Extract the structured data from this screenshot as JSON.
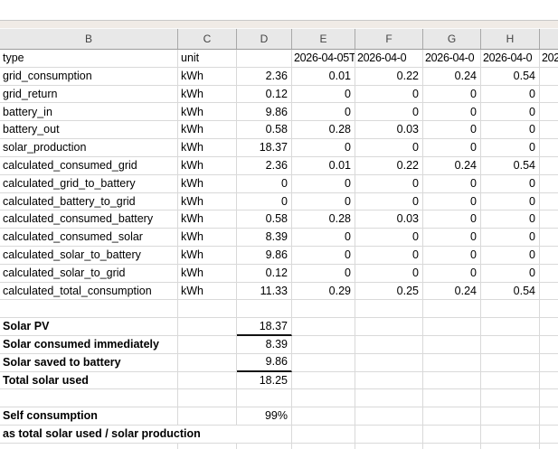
{
  "colors": {
    "header_bg": "#e8e8e8",
    "header_border": "#9c9c9c",
    "gridline": "#d9d9d9",
    "ribbon_strip": "#f0ebe6",
    "sum_border": "#111111"
  },
  "sheet": {
    "column_letters": [
      "B",
      "C",
      "D",
      "E",
      "F",
      "G",
      "H",
      ""
    ],
    "header_row": {
      "type_label": "type",
      "unit_label": "unit",
      "date_headers": [
        "2026-04-05T",
        "2026-04-0",
        "2026-04-0",
        "2026-04-0",
        "202"
      ]
    },
    "rows": [
      {
        "type": "grid_consumption",
        "unit": "kWh",
        "values": [
          "2.36",
          "0.01",
          "0.22",
          "0.24",
          "0.54"
        ]
      },
      {
        "type": "grid_return",
        "unit": "kWh",
        "values": [
          "0.12",
          "0",
          "0",
          "0",
          "0"
        ]
      },
      {
        "type": "battery_in",
        "unit": "kWh",
        "values": [
          "9.86",
          "0",
          "0",
          "0",
          "0"
        ]
      },
      {
        "type": "battery_out",
        "unit": "kWh",
        "values": [
          "0.58",
          "0.28",
          "0.03",
          "0",
          "0"
        ]
      },
      {
        "type": "solar_production",
        "unit": "kWh",
        "values": [
          "18.37",
          "0",
          "0",
          "0",
          "0"
        ]
      },
      {
        "type": "calculated_consumed_grid",
        "unit": "kWh",
        "values": [
          "2.36",
          "0.01",
          "0.22",
          "0.24",
          "0.54"
        ]
      },
      {
        "type": "calculated_grid_to_battery",
        "unit": "kWh",
        "values": [
          "0",
          "0",
          "0",
          "0",
          "0"
        ]
      },
      {
        "type": "calculated_battery_to_grid",
        "unit": "kWh",
        "values": [
          "0",
          "0",
          "0",
          "0",
          "0"
        ]
      },
      {
        "type": "calculated_consumed_battery",
        "unit": "kWh",
        "values": [
          "0.58",
          "0.28",
          "0.03",
          "0",
          "0"
        ]
      },
      {
        "type": "calculated_consumed_solar",
        "unit": "kWh",
        "values": [
          "8.39",
          "0",
          "0",
          "0",
          "0"
        ]
      },
      {
        "type": "calculated_solar_to_battery",
        "unit": "kWh",
        "values": [
          "9.86",
          "0",
          "0",
          "0",
          "0"
        ]
      },
      {
        "type": "calculated_solar_to_grid",
        "unit": "kWh",
        "values": [
          "0.12",
          "0",
          "0",
          "0",
          "0"
        ]
      },
      {
        "type": "calculated_total_consumption",
        "unit": "kWh",
        "values": [
          "11.33",
          "0.29",
          "0.25",
          "0.24",
          "0.54"
        ]
      }
    ]
  },
  "summary": {
    "rows": [
      {
        "label": "Solar PV",
        "value": "18.37",
        "underline": true
      },
      {
        "label": "Solar consumed immediately",
        "value": "8.39",
        "underline": false
      },
      {
        "label": "Solar saved to battery",
        "value": "9.86",
        "underline": true
      },
      {
        "label": "Total solar used",
        "value": "18.25",
        "underline": false
      }
    ],
    "self_consumption": {
      "label": "Self consumption",
      "value": "99%"
    },
    "note": "as total solar used / solar production"
  }
}
